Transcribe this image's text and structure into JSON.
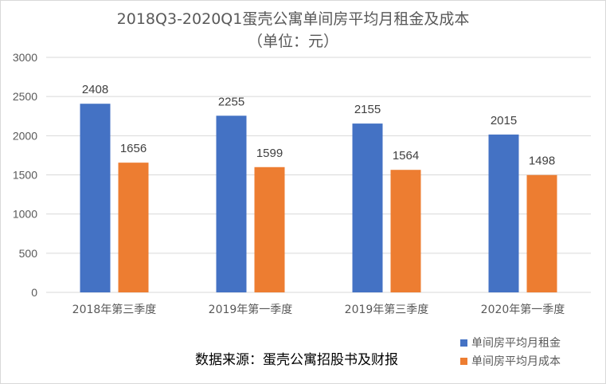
{
  "chart_data": {
    "type": "bar",
    "title": "2018Q3-2020Q1蛋壳公寓单间房平均月租金及成本",
    "subtitle": "（单位：元）",
    "categories": [
      "2018年第三季度",
      "2019年第一季度",
      "2019年第三季度",
      "2020年第一季度"
    ],
    "series": [
      {
        "name": "单间房平均月租金",
        "values": [
          2408,
          2255,
          2155,
          2015
        ],
        "color": "#4472C4"
      },
      {
        "name": "单间房平均月成本",
        "values": [
          1656,
          1599,
          1564,
          1498
        ],
        "color": "#ED7D31"
      }
    ],
    "y_ticks": [
      0,
      500,
      1000,
      1500,
      2000,
      2500,
      3000
    ],
    "ylim": [
      0,
      3000
    ],
    "grid": true,
    "legend_position": "bottom-right",
    "source": "数据来源：蛋壳公寓招股书及财报"
  }
}
